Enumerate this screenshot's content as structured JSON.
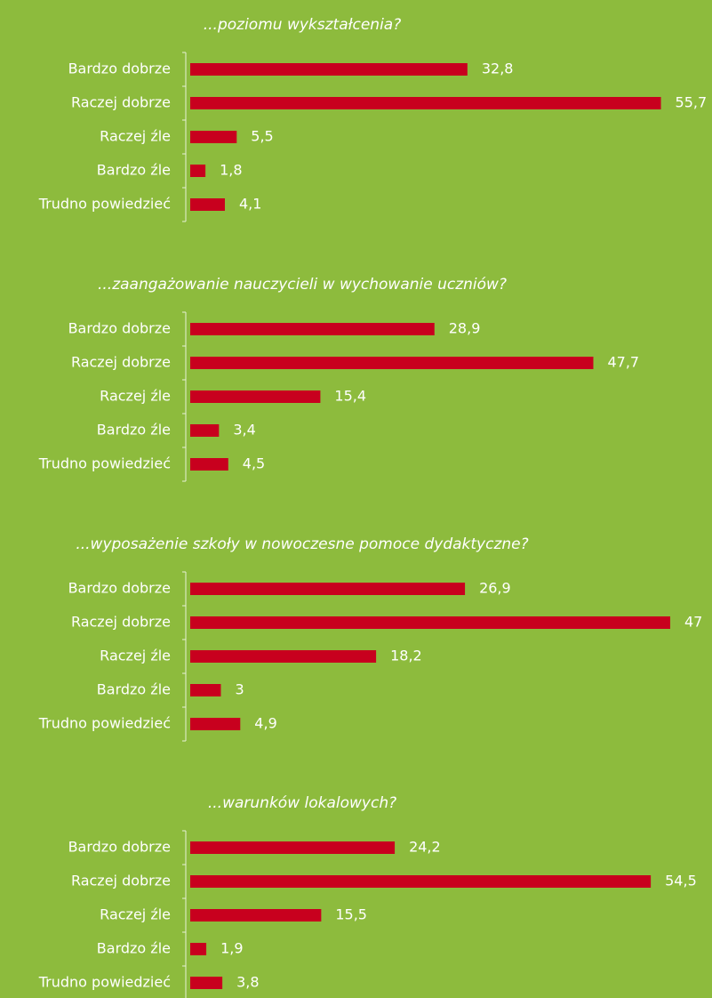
{
  "chart_data": [
    {
      "type": "bar",
      "orientation": "horizontal",
      "title": "...poziomu wykształcenia?",
      "color": "#c8001e",
      "categories": [
        "Bardzo dobrze",
        "Raczej dobrze",
        "Raczej źle",
        "Bardzo źle",
        "Trudno powiedzieć"
      ],
      "values": [
        32.8,
        55.7,
        5.5,
        1.8,
        4.1
      ],
      "value_labels": [
        "32,8",
        "55,7",
        "5,5",
        "1,8",
        "4,1"
      ],
      "xlim": [
        0,
        56.8
      ]
    },
    {
      "type": "bar",
      "orientation": "horizontal",
      "title": "...zaangażowanie nauczycieli w wychowanie uczniów?",
      "color": "#c8001e",
      "categories": [
        "Bardzo dobrze",
        "Raczej dobrze",
        "Raczej źle",
        "Bardzo źle",
        "Trudno powiedzieć"
      ],
      "values": [
        28.9,
        47.7,
        15.4,
        3.4,
        4.5
      ],
      "value_labels": [
        "28,9",
        "47,7",
        "15,4",
        "3,4",
        "4,5"
      ],
      "xlim": [
        0,
        56.8
      ]
    },
    {
      "type": "bar",
      "orientation": "horizontal",
      "title": "...wyposażenie szkoły w nowoczesne pomoce dydaktyczne?",
      "color": "#c8001e",
      "categories": [
        "Bardzo dobrze",
        "Raczej dobrze",
        "Raczej źle",
        "Bardzo źle",
        "Trudno powiedzieć"
      ],
      "values": [
        26.9,
        47,
        18.2,
        3,
        4.9
      ],
      "value_labels": [
        "26,9",
        "47",
        "18,2",
        "3",
        "4,9"
      ],
      "xlim": [
        0,
        47
      ]
    },
    {
      "type": "bar",
      "orientation": "horizontal",
      "title": "...warunków lokalowych?",
      "color": "#c8001e",
      "categories": [
        "Bardzo dobrze",
        "Raczej dobrze",
        "Raczej źle",
        "Bardzo źle",
        "Trudno powiedzieć"
      ],
      "values": [
        24.2,
        54.5,
        15.5,
        1.9,
        3.8
      ],
      "value_labels": [
        "24,2",
        "54,5",
        "15,5",
        "1,9",
        "3,8"
      ],
      "xlim": [
        0,
        56.8
      ]
    }
  ]
}
